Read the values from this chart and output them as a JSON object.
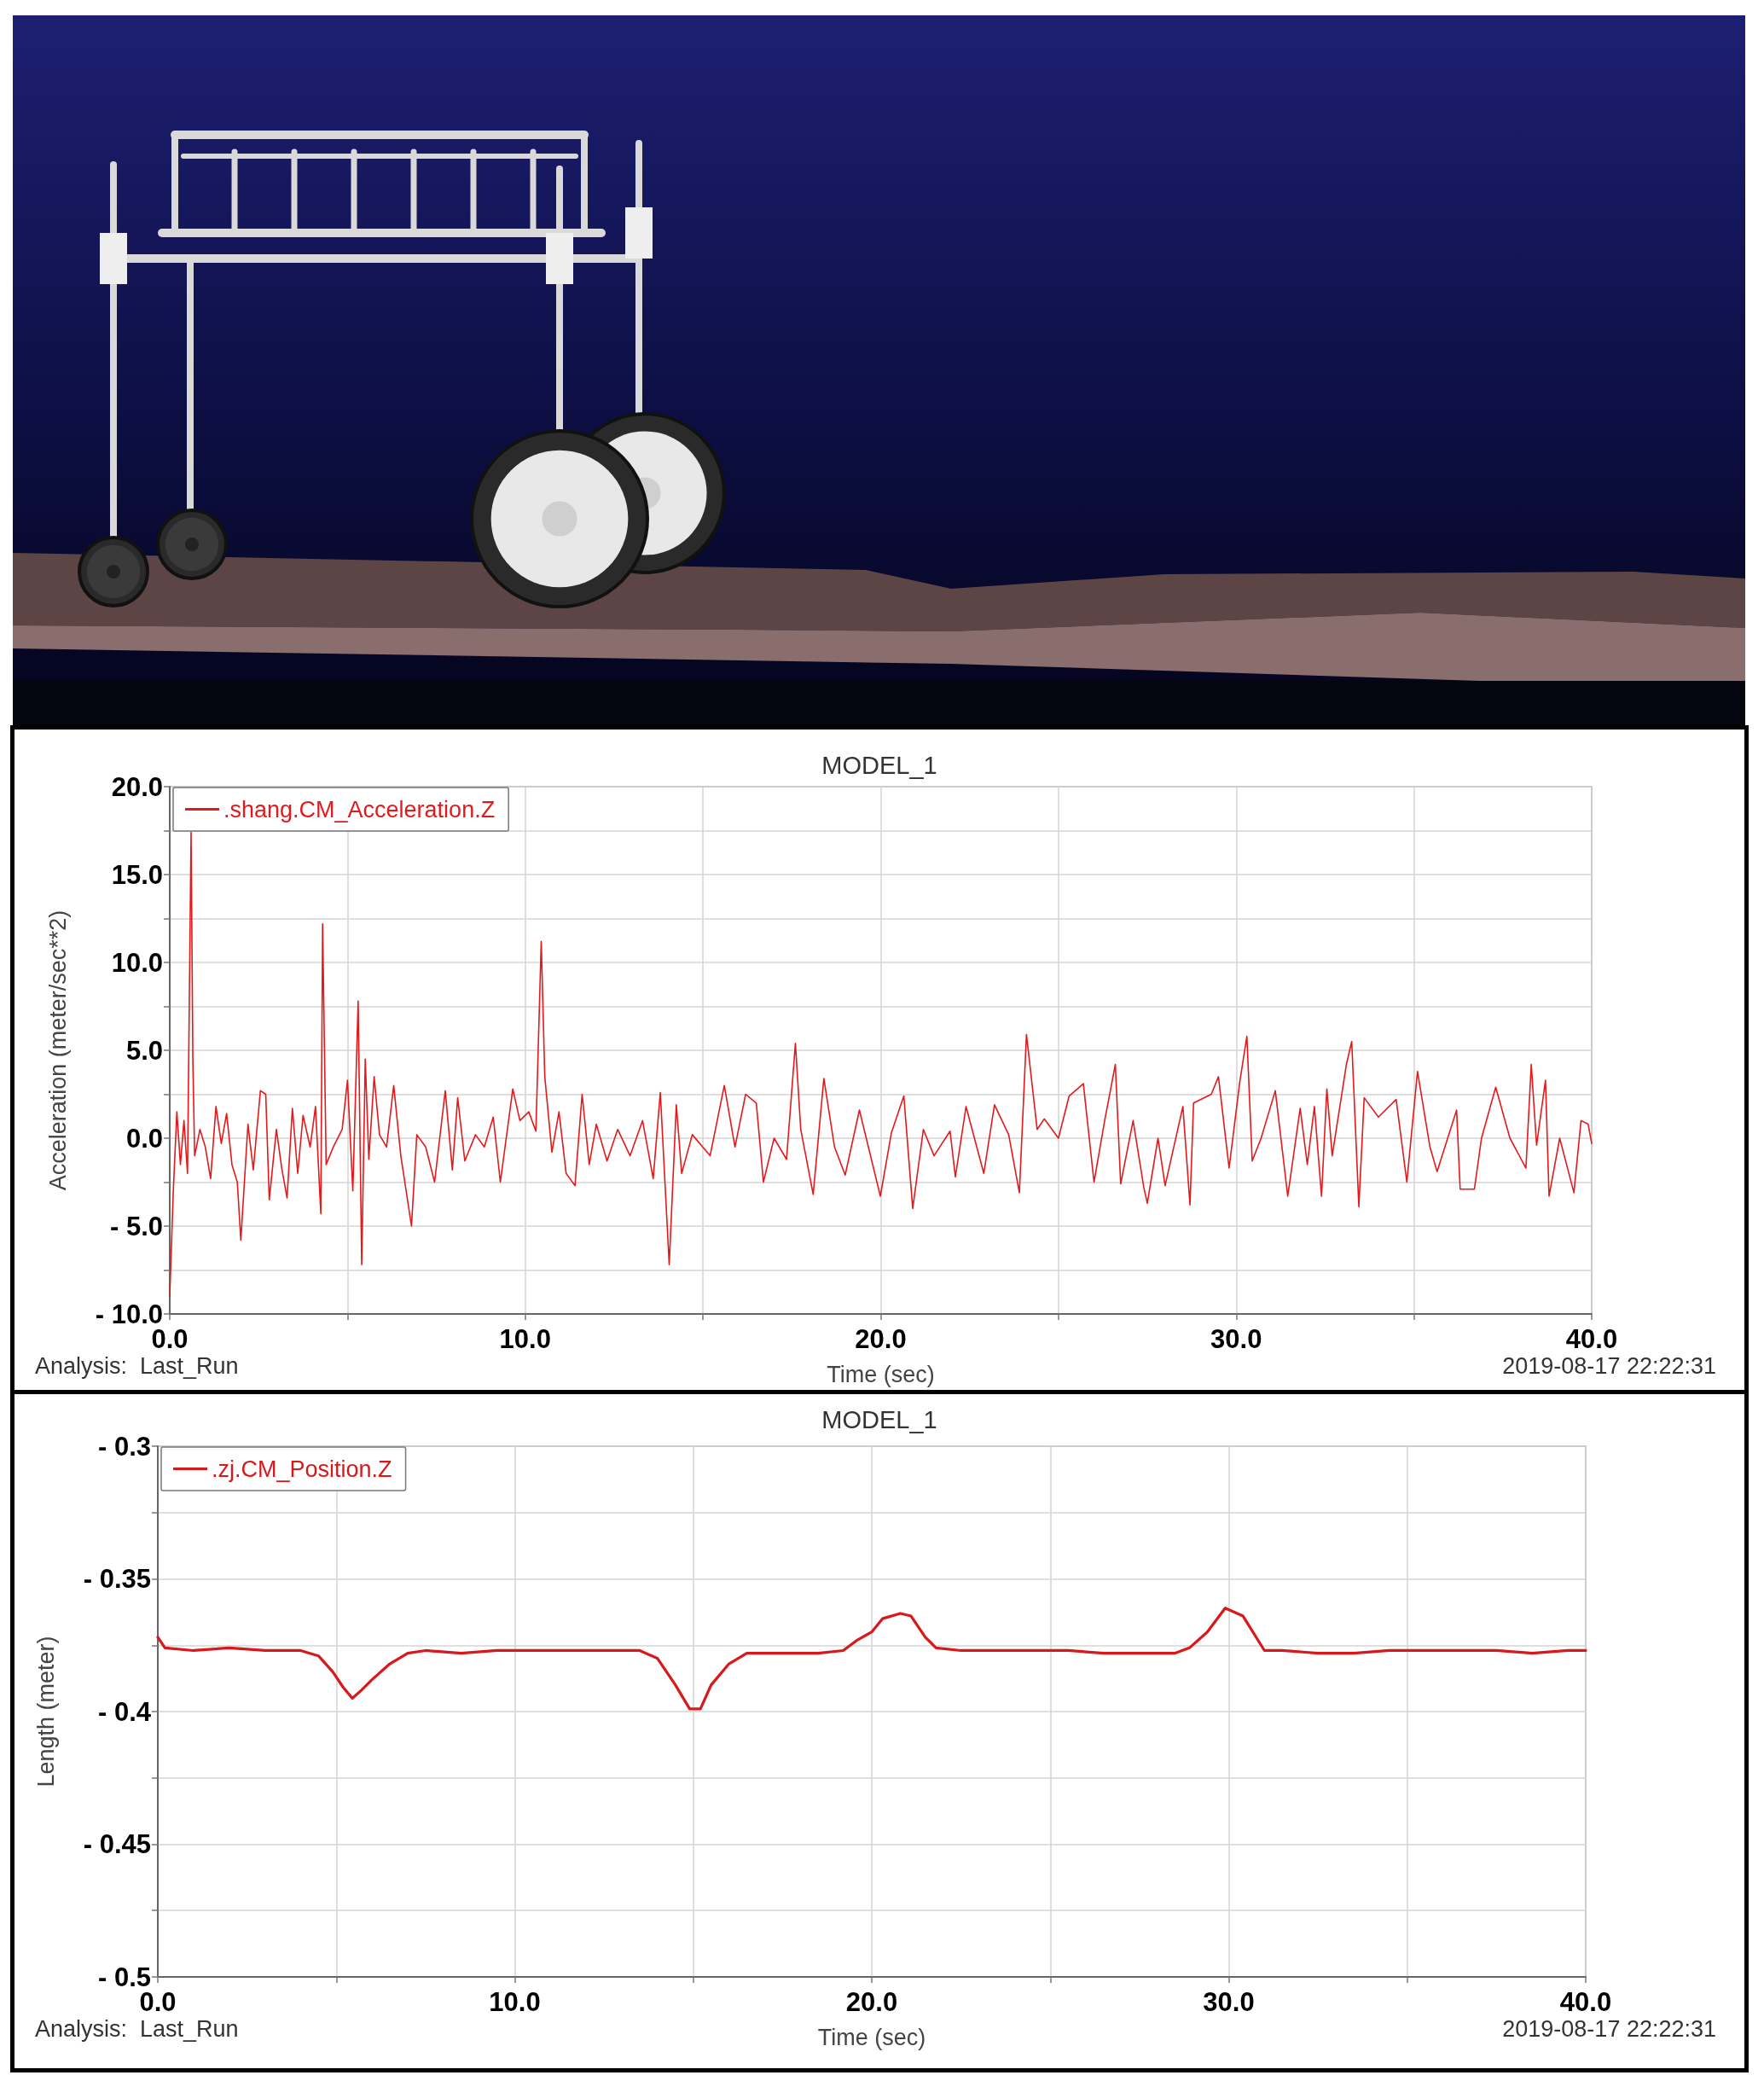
{
  "chart_data": [
    {
      "type": "line",
      "title": "MODEL_1",
      "xlabel": "Time (sec)",
      "ylabel": "Acceleration (meter/sec**2)",
      "annotations": [
        "Analysis:  Last_Run",
        "2019-08-17 22:22:31"
      ],
      "x": [
        0,
        0.1,
        0.2,
        0.3,
        0.4,
        0.5,
        0.6,
        0.65,
        0.7,
        0.85,
        1.0,
        1.15,
        1.3,
        1.45,
        1.6,
        1.75,
        1.9,
        2.0,
        2.2,
        2.35,
        2.55,
        2.7,
        2.8,
        3.0,
        3.15,
        3.3,
        3.45,
        3.6,
        3.75,
        3.95,
        4.1,
        4.25,
        4.3,
        4.4,
        4.6,
        4.85,
        5.0,
        5.15,
        5.3,
        5.4,
        5.5,
        5.6,
        5.75,
        5.9,
        6.1,
        6.3,
        6.5,
        6.8,
        6.95,
        7.2,
        7.45,
        7.75,
        7.95,
        8.1,
        8.3,
        8.6,
        8.85,
        9.1,
        9.3,
        9.65,
        9.85,
        10.1,
        10.3,
        10.45,
        10.55,
        10.75,
        10.95,
        11.15,
        11.4,
        11.6,
        11.8,
        12.0,
        12.3,
        12.6,
        12.95,
        13.3,
        13.6,
        13.8,
        14.05,
        14.25,
        14.4,
        14.7,
        15.2,
        15.6,
        15.9,
        16.2,
        16.5,
        16.7,
        17.0,
        17.35,
        17.6,
        17.75,
        18.1,
        18.4,
        18.7,
        19.0,
        19.4,
        19.99,
        20.3,
        20.65,
        20.9,
        21.2,
        21.5,
        21.95,
        22.1,
        22.4,
        22.9,
        23.2,
        23.6,
        23.9,
        24.1,
        24.4,
        24.6,
        25.0,
        25.3,
        25.7,
        26.0,
        26.3,
        26.6,
        26.75,
        27.1,
        27.4,
        27.5,
        27.8,
        28.0,
        28.5,
        28.7,
        28.8,
        29.3,
        29.5,
        29.8,
        30.1,
        30.3,
        30.45,
        30.7,
        31.1,
        31.45,
        31.8,
        32.0,
        32.2,
        32.4,
        32.55,
        32.7,
        33.1,
        33.25,
        33.45,
        33.6,
        34.0,
        34.5,
        34.8,
        35.1,
        35.45,
        35.65,
        36.2,
        36.3,
        36.7,
        36.9,
        37.3,
        37.7,
        38.15,
        38.3,
        38.45,
        38.7,
        38.8,
        39.1,
        39.5,
        39.7,
        39.9,
        40.0
      ],
      "series": [
        {
          "name": ".shang.CM_Acceleration.Z",
          "color": "#e31a1c",
          "values": [
            -9,
            -3,
            1.5,
            -1.5,
            1,
            -2,
            17.4,
            4.5,
            -1,
            0.5,
            -0.5,
            -2.3,
            1.8,
            -0.3,
            1.4,
            -1.5,
            -2.5,
            -5.8,
            0.8,
            -1.8,
            2.7,
            2.5,
            -3.5,
            0.5,
            -1.7,
            -3.4,
            1.7,
            -2,
            1.3,
            -0.5,
            1.8,
            -4.3,
            12.2,
            -1.5,
            -0.5,
            0.5,
            3.3,
            -3,
            7.8,
            -7.2,
            4.5,
            -1.2,
            3.5,
            0.2,
            -0.5,
            3,
            -1,
            -5,
            0.2,
            -0.5,
            -2.5,
            2.7,
            -1.8,
            2.3,
            -1.3,
            0.2,
            -0.5,
            1.2,
            -2.5,
            2.8,
            1,
            1.5,
            0.4,
            11.2,
            3.5,
            -0.8,
            1.5,
            -2,
            -2.7,
            2.5,
            -1.5,
            0.8,
            -1.3,
            0.5,
            -1,
            1,
            -2.3,
            2.6,
            -7.2,
            1.9,
            -2,
            0.2,
            -1,
            3,
            -0.5,
            2.5,
            2,
            -2.5,
            0,
            -1.2,
            5.4,
            0.5,
            -3.2,
            3.4,
            -0.5,
            -2.1,
            1.6,
            -3.3,
            0.3,
            2.4,
            -4,
            0.5,
            -1,
            0.4,
            -2.2,
            1.8,
            -2,
            1.9,
            0.2,
            -3.1,
            5.9,
            0.5,
            1.1,
            0,
            2.4,
            3.1,
            -2.5,
            1,
            4.2,
            -2.6,
            1,
            -2.8,
            -3.7,
            0,
            -2.7,
            1.8,
            -3.8,
            2,
            2.5,
            3.5,
            -1.7,
            3.2,
            5.8,
            -1.3,
            0,
            2.7,
            -3.3,
            1.7,
            -1.5,
            1.8,
            -3.3,
            2.8,
            -1,
            4.2,
            5.5,
            -3.9,
            2.3,
            1.2,
            2.2,
            -2.5,
            3.8,
            -0.5,
            -1.9,
            1.6,
            -2.9,
            -2.9,
            0,
            2.9,
            0,
            -1.7,
            4.2,
            -0.4,
            3.3,
            -3.3,
            0,
            -3.1,
            1,
            0.8,
            -0.3
          ]
        }
      ],
      "xlim": [
        0,
        40
      ],
      "xticks": [
        {
          "value": 0,
          "label": "0.0"
        },
        {
          "value": 5,
          "label": null
        },
        {
          "value": 10,
          "label": "10.0"
        },
        {
          "value": 15,
          "label": null
        },
        {
          "value": 20,
          "label": "20.0"
        },
        {
          "value": 25,
          "label": null
        },
        {
          "value": 30,
          "label": "30.0"
        },
        {
          "value": 35,
          "label": null
        },
        {
          "value": 40,
          "label": "40.0"
        }
      ],
      "ylim": [
        -10,
        20
      ],
      "yticks": [
        {
          "value": -10,
          "label": "- 10.0"
        },
        {
          "value": -7.5,
          "label": null
        },
        {
          "value": -5,
          "label": "- 5.0"
        },
        {
          "value": -2.5,
          "label": null
        },
        {
          "value": 0,
          "label": "0.0"
        },
        {
          "value": 2.5,
          "label": null
        },
        {
          "value": 5,
          "label": "5.0"
        },
        {
          "value": 7.5,
          "label": null
        },
        {
          "value": 10,
          "label": "10.0"
        },
        {
          "value": 12.5,
          "label": null
        },
        {
          "value": 15,
          "label": "15.0"
        },
        {
          "value": 17.5,
          "label": null
        },
        {
          "value": 20,
          "label": "20.0"
        }
      ],
      "grid": true,
      "legend": "top left",
      "line_style": "solid"
    },
    {
      "type": "line",
      "title": "MODEL_1",
      "xlabel": "Time (sec)",
      "ylabel": "Length (meter)",
      "annotations": [
        "Analysis:  Last_Run",
        "2019-08-17 22:22:31"
      ],
      "x": [
        0,
        0.2,
        1.0,
        2.0,
        3.0,
        4.0,
        4.5,
        4.9,
        5.2,
        5.45,
        5.7,
        6.0,
        6.5,
        7.0,
        7.5,
        8.5,
        9.5,
        10.5,
        11.5,
        12.5,
        13.5,
        14.0,
        14.5,
        14.9,
        15.2,
        15.5,
        16.0,
        16.5,
        17.5,
        18.5,
        19.2,
        19.6,
        20.0,
        20.3,
        20.8,
        21.1,
        21.5,
        21.8,
        22.5,
        23.5,
        24.5,
        25.5,
        26.5,
        27.5,
        28.5,
        28.9,
        29.4,
        29.9,
        30.4,
        31.0,
        31.5,
        32.5,
        33.5,
        34.5,
        35.5,
        36.5,
        37.5,
        38.5,
        39.5,
        40.0
      ],
      "series": [
        {
          "name": ".zj.CM_Position.Z",
          "color": "#d7191c",
          "values": [
            -0.372,
            -0.376,
            -0.377,
            -0.376,
            -0.377,
            -0.377,
            -0.379,
            -0.385,
            -0.391,
            -0.395,
            -0.392,
            -0.388,
            -0.382,
            -0.378,
            -0.377,
            -0.378,
            -0.377,
            -0.377,
            -0.377,
            -0.377,
            -0.377,
            -0.38,
            -0.39,
            -0.399,
            -0.399,
            -0.39,
            -0.382,
            -0.378,
            -0.378,
            -0.378,
            -0.377,
            -0.373,
            -0.37,
            -0.365,
            -0.363,
            -0.364,
            -0.372,
            -0.376,
            -0.377,
            -0.377,
            -0.377,
            -0.377,
            -0.378,
            -0.378,
            -0.378,
            -0.376,
            -0.37,
            -0.361,
            -0.364,
            -0.377,
            -0.377,
            -0.378,
            -0.378,
            -0.377,
            -0.377,
            -0.377,
            -0.377,
            -0.378,
            -0.377,
            -0.377
          ]
        }
      ],
      "xlim": [
        0,
        40
      ],
      "xticks": [
        {
          "value": 0,
          "label": "0.0"
        },
        {
          "value": 5,
          "label": null
        },
        {
          "value": 10,
          "label": "10.0"
        },
        {
          "value": 15,
          "label": null
        },
        {
          "value": 20,
          "label": "20.0"
        },
        {
          "value": 25,
          "label": null
        },
        {
          "value": 30,
          "label": "30.0"
        },
        {
          "value": 35,
          "label": null
        },
        {
          "value": 40,
          "label": "40.0"
        }
      ],
      "ylim": [
        -0.5,
        -0.3
      ],
      "yticks": [
        {
          "value": -0.5,
          "label": "- 0.5"
        },
        {
          "value": -0.475,
          "label": null
        },
        {
          "value": -0.45,
          "label": "- 0.45"
        },
        {
          "value": -0.425,
          "label": null
        },
        {
          "value": -0.4,
          "label": "- 0.4"
        },
        {
          "value": -0.375,
          "label": null
        },
        {
          "value": -0.35,
          "label": "- 0.35"
        },
        {
          "value": -0.325,
          "label": null
        },
        {
          "value": -0.3,
          "label": "- 0.3"
        }
      ],
      "grid": true,
      "legend": "top left",
      "line_style": "solid"
    }
  ]
}
